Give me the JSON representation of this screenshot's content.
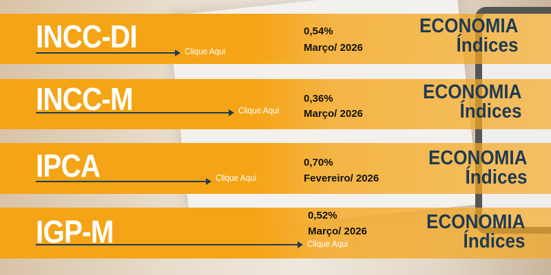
{
  "indices": [
    {
      "name": "INCC-DI",
      "link": "Clique Aqui",
      "value": "0,54%",
      "period": "Março/ 2026",
      "section": "ECONOMIA",
      "subsection": "Índices"
    },
    {
      "name": "INCC-M",
      "link": "Clique Aqui",
      "value": "0,36%",
      "period": "Março/ 2026",
      "section": "ECONOMIA",
      "subsection": "Índices"
    },
    {
      "name": "IPCA",
      "link": "Clique Aqui",
      "value": "0,70%",
      "period": "Fevereiro/ 2026",
      "section": "ECONOMIA",
      "subsection": "Índices"
    },
    {
      "name": "IGP-M",
      "link": "Clique Aqui",
      "value": "0,52%",
      "period": "Março/ 2026",
      "section": "ECONOMIA",
      "subsection": "Índices"
    }
  ],
  "colors": {
    "band": "#f5a415",
    "title": "#ffffff",
    "accent": "#1e3a52"
  }
}
